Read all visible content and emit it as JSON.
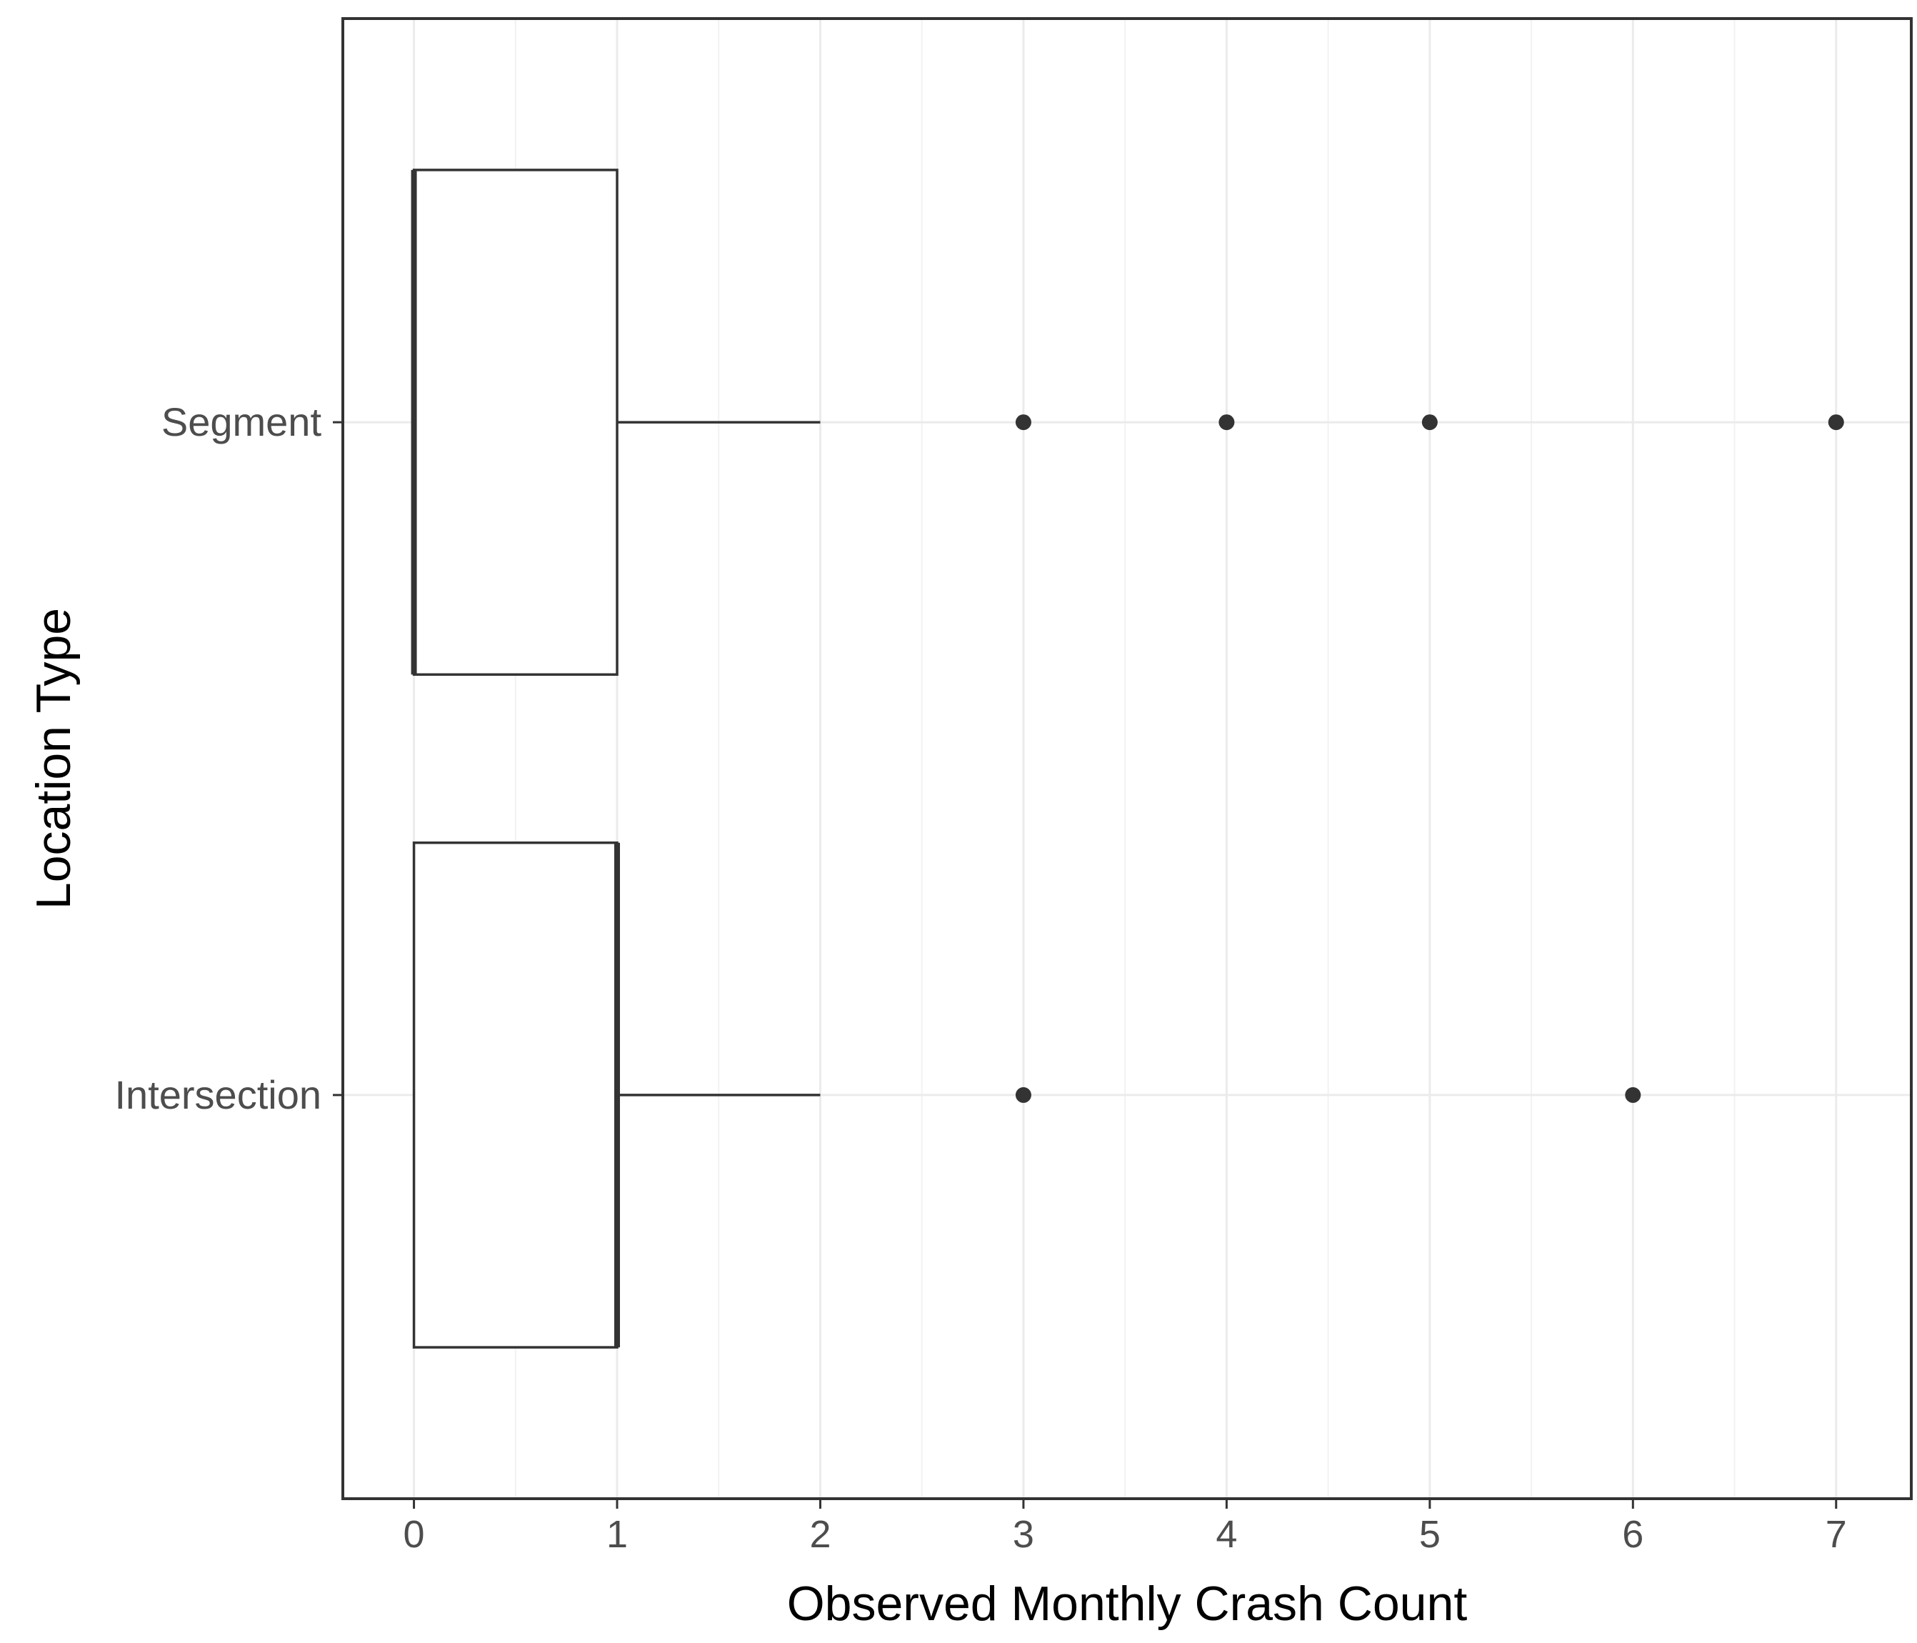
{
  "chart_data": {
    "type": "boxplot",
    "orientation": "horizontal",
    "xlabel": "Observed Monthly Crash Count",
    "ylabel": "Location Type",
    "xlim": [
      -0.35,
      7.37
    ],
    "x_ticks": [
      0,
      1,
      2,
      3,
      4,
      5,
      6,
      7
    ],
    "grid": true,
    "series": [
      {
        "category": "Segment",
        "min": 0,
        "q1": 0,
        "median": 0,
        "q3": 1,
        "max": 2,
        "outliers": [
          3,
          4,
          5,
          7
        ]
      },
      {
        "category": "Intersection",
        "min": 0,
        "q1": 0,
        "median": 1,
        "q3": 1,
        "max": 2,
        "outliers": [
          3,
          6
        ]
      }
    ],
    "colors": {
      "box_stroke": "#333333",
      "box_fill": "#ffffff",
      "grid_major": "#ebebeb",
      "grid_minor": "#f2f2f2",
      "panel_border": "#333333",
      "outlier": "#333333"
    }
  }
}
